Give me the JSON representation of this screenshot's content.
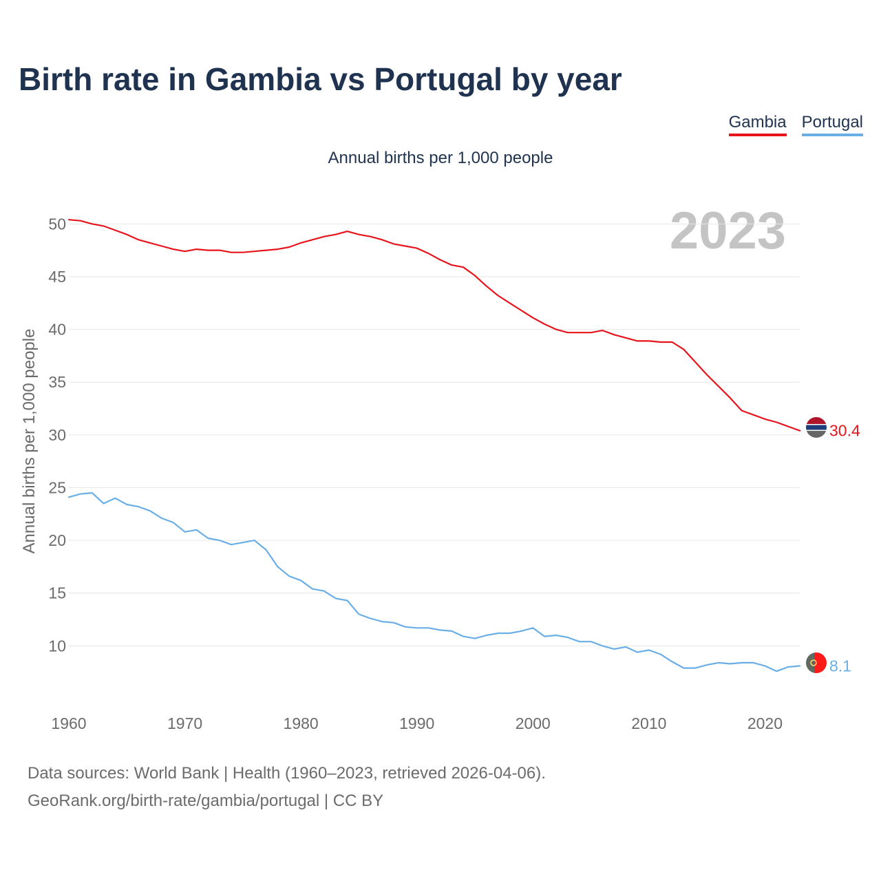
{
  "title": "Birth rate in Gambia vs Portugal by year",
  "subtitle": "Annual births per 1,000 people",
  "year_badge": "2023",
  "footer": {
    "line1": "Data sources: World Bank | Health (1960–2023, retrieved 2026-04-06).",
    "line2": "GeoRank.org/birth-rate/gambia/portugal | CC BY"
  },
  "chart_data": {
    "type": "line",
    "title": "Birth rate in Gambia vs Portugal by year",
    "subtitle": "Annual births per 1,000 people",
    "xlabel": "",
    "ylabel": "Annual births per 1,000 people",
    "xlim": [
      1960,
      2023
    ],
    "ylim": [
      5,
      51
    ],
    "x_ticks": [
      "1960",
      "1970",
      "1980",
      "1990",
      "2000",
      "2010",
      "2020"
    ],
    "y_ticks": [
      "10",
      "15",
      "20",
      "25",
      "30",
      "35",
      "40",
      "45",
      "50"
    ],
    "grid": true,
    "legend_position": "top-right",
    "x": [
      1960,
      1961,
      1962,
      1963,
      1964,
      1965,
      1966,
      1967,
      1968,
      1969,
      1970,
      1971,
      1972,
      1973,
      1974,
      1975,
      1976,
      1977,
      1978,
      1979,
      1980,
      1981,
      1982,
      1983,
      1984,
      1985,
      1986,
      1987,
      1988,
      1989,
      1990,
      1991,
      1992,
      1993,
      1994,
      1995,
      1996,
      1997,
      1998,
      1999,
      2000,
      2001,
      2002,
      2003,
      2004,
      2005,
      2006,
      2007,
      2008,
      2009,
      2010,
      2011,
      2012,
      2013,
      2014,
      2015,
      2016,
      2017,
      2018,
      2019,
      2020,
      2021,
      2022,
      2023
    ],
    "series": [
      {
        "name": "Gambia",
        "color": "#e8141c",
        "end_label": "30.4",
        "values": [
          50.4,
          50.3,
          50.0,
          49.8,
          49.4,
          49.0,
          48.5,
          48.2,
          47.9,
          47.6,
          47.4,
          47.6,
          47.5,
          47.5,
          47.3,
          47.3,
          47.4,
          47.5,
          47.6,
          47.8,
          48.2,
          48.5,
          48.8,
          49.0,
          49.3,
          49.0,
          48.8,
          48.5,
          48.1,
          47.9,
          47.7,
          47.2,
          46.6,
          46.1,
          45.9,
          45.1,
          44.1,
          43.2,
          42.5,
          41.8,
          41.1,
          40.5,
          40.0,
          39.7,
          39.7,
          39.7,
          39.9,
          39.5,
          39.2,
          38.9,
          38.9,
          38.8,
          38.8,
          38.1,
          36.9,
          35.7,
          34.6,
          33.5,
          32.3,
          31.9,
          31.5,
          31.2,
          30.8,
          30.4
        ]
      },
      {
        "name": "Portugal",
        "color": "#6aaee8",
        "end_label": "8.1",
        "values": [
          24.1,
          24.4,
          24.5,
          23.5,
          24.0,
          23.4,
          23.2,
          22.8,
          22.1,
          21.7,
          20.8,
          21.0,
          20.2,
          20.0,
          19.6,
          19.8,
          20.0,
          19.1,
          17.5,
          16.6,
          16.2,
          15.4,
          15.2,
          14.5,
          14.3,
          13.0,
          12.6,
          12.3,
          12.2,
          11.8,
          11.7,
          11.7,
          11.5,
          11.4,
          10.9,
          10.7,
          11.0,
          11.2,
          11.2,
          11.4,
          11.7,
          10.9,
          11.0,
          10.8,
          10.4,
          10.4,
          10.0,
          9.7,
          9.9,
          9.4,
          9.6,
          9.2,
          8.5,
          7.9,
          7.9,
          8.2,
          8.4,
          8.3,
          8.4,
          8.4,
          8.1,
          7.6,
          8.0,
          8.1
        ]
      }
    ]
  }
}
